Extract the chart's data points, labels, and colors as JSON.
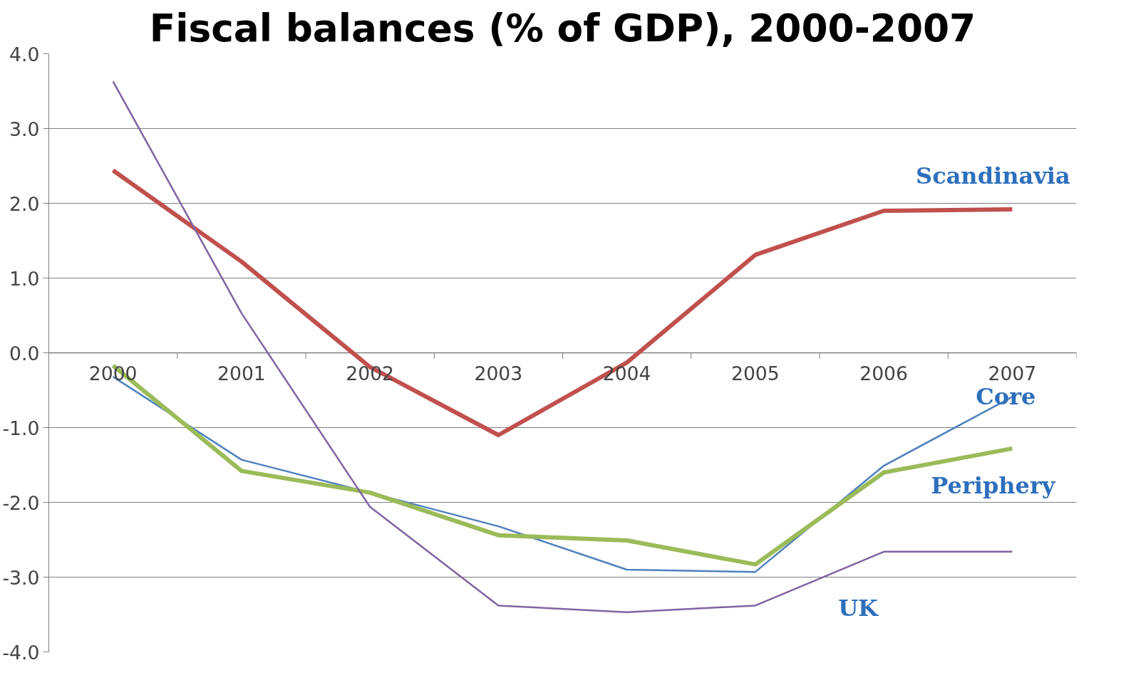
{
  "chart_data": {
    "type": "line",
    "title": "Fiscal balances (% of GDP), 2000-2007",
    "categories": [
      "2000",
      "2001",
      "2002",
      "2003",
      "2004",
      "2005",
      "2006",
      "2007"
    ],
    "series": [
      {
        "name": "Scandinavia",
        "color": "#c0504d",
        "values": [
          2.44,
          1.22,
          -0.19,
          -1.1,
          -0.13,
          1.31,
          1.9,
          1.92
        ]
      },
      {
        "name": "Core",
        "color": "#4f81bd",
        "values": [
          -0.32,
          -1.43,
          -1.87,
          -2.32,
          -2.9,
          -2.93,
          -1.51,
          -0.59
        ]
      },
      {
        "name": "Periphery",
        "color": "#9bbb59",
        "values": [
          -0.17,
          -1.58,
          -1.87,
          -2.44,
          -2.51,
          -2.83,
          -1.6,
          -1.28
        ]
      },
      {
        "name": "UK",
        "color": "#8064a2",
        "values": [
          3.63,
          0.53,
          -2.06,
          -3.38,
          -3.47,
          -3.38,
          -2.66,
          -2.66
        ]
      }
    ],
    "ylim": [
      -4,
      4
    ],
    "yticks": [
      {
        "value": -4,
        "label": "-4.0"
      },
      {
        "value": -3,
        "label": "-3.0"
      },
      {
        "value": -2,
        "label": "-2.0"
      },
      {
        "value": -1,
        "label": "-1.0"
      },
      {
        "value": 0,
        "label": "0.0"
      },
      {
        "value": 1,
        "label": "1.0"
      },
      {
        "value": 2,
        "label": "2.0"
      },
      {
        "value": 3,
        "label": "3.0"
      },
      {
        "value": 4,
        "label": "4.0"
      }
    ],
    "grid": "y",
    "line_style": "solid",
    "marker": "none"
  }
}
